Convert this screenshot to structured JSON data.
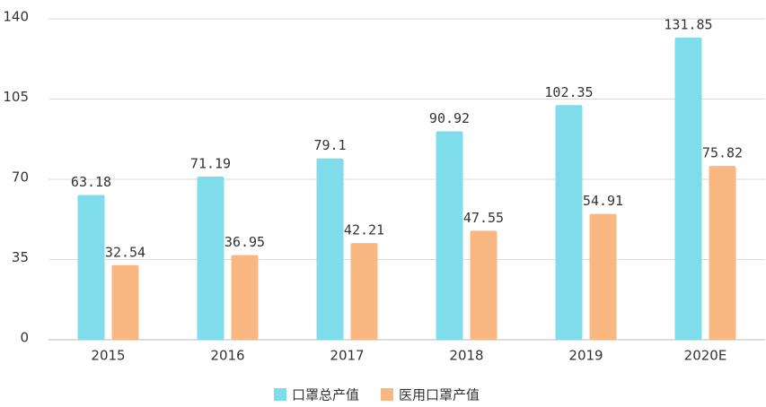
{
  "chart_data": {
    "type": "bar",
    "categories": [
      "2015",
      "2016",
      "2017",
      "2018",
      "2019",
      "2020E"
    ],
    "series": [
      {
        "name": "口罩总产值",
        "color": "#7fdcea",
        "values": [
          63.18,
          71.19,
          79.1,
          90.92,
          102.35,
          131.85
        ]
      },
      {
        "name": "医用口罩产值",
        "color": "#f9b882",
        "values": [
          32.54,
          36.95,
          42.21,
          47.55,
          54.91,
          75.82
        ]
      }
    ],
    "ylim": [
      0,
      140
    ],
    "yticks": [
      0,
      35,
      70,
      105,
      140
    ],
    "grid": true,
    "legend": "bottom"
  }
}
